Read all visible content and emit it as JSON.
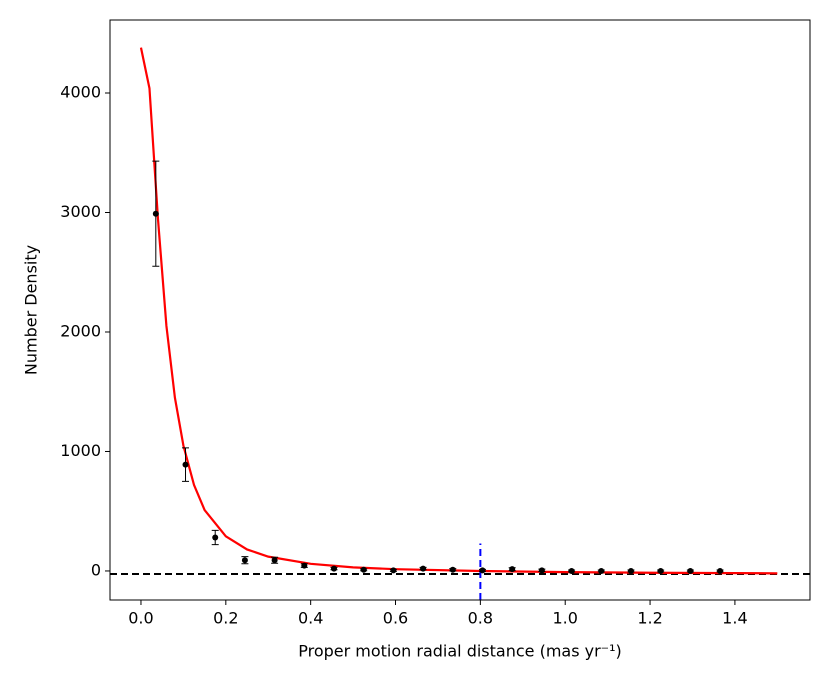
{
  "chart_data": {
    "type": "errorbar",
    "xlabel": "Proper motion radial distance (mas yr⁻¹)",
    "ylabel": "Number Density",
    "xlim": [
      -0.073,
      1.577
    ],
    "ylim": [
      -243,
      4611
    ],
    "xticks": [
      {
        "value": 0,
        "label": "0.0"
      },
      0.2,
      0.4,
      0.6,
      0.8,
      {
        "value": 1,
        "label": "1.0"
      },
      1.2,
      1.4
    ],
    "yticks": [
      0,
      1000,
      2000,
      3000,
      4000
    ],
    "points": {
      "color": "#000000",
      "x": [
        0.035,
        0.105,
        0.175,
        0.245,
        0.315,
        0.385,
        0.455,
        0.525,
        0.595,
        0.665,
        0.735,
        0.805,
        0.875,
        0.945,
        1.015,
        1.085,
        1.155,
        1.225,
        1.295,
        1.365
      ],
      "values": [
        2990,
        890,
        280,
        90,
        90,
        45,
        20,
        10,
        5,
        20,
        10,
        5,
        15,
        5,
        0,
        0,
        0,
        0,
        0,
        0
      ],
      "errors": [
        440,
        140,
        60,
        30,
        25,
        15,
        10,
        8,
        8,
        10,
        10,
        8,
        12,
        10,
        8,
        8,
        8,
        8,
        8,
        8
      ]
    },
    "fit": {
      "color": "#ff0000",
      "x": [
        0,
        0.02,
        0.04,
        0.06,
        0.08,
        0.1,
        0.125,
        0.15,
        0.2,
        0.25,
        0.3,
        0.4,
        0.5,
        0.6,
        0.8,
        1.0,
        1.2,
        1.5
      ],
      "values": [
        4380,
        4040,
        2950,
        2050,
        1450,
        1050,
        720,
        510,
        290,
        180,
        120,
        60,
        30,
        15,
        0,
        -10,
        -15,
        -20
      ]
    },
    "hline": {
      "y": -25,
      "color": "#000000"
    },
    "vline": {
      "x": 0.8,
      "ymax": 230,
      "color": "#0000ff"
    }
  }
}
